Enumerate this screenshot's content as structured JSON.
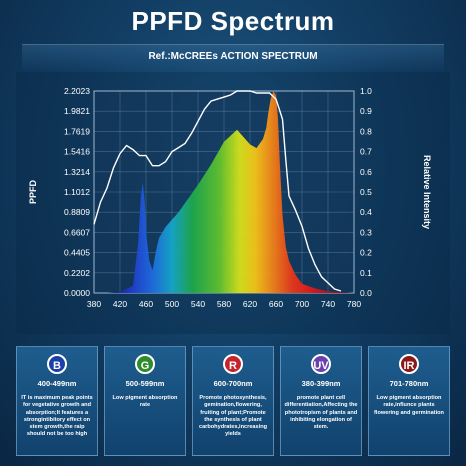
{
  "header": {
    "title": "PPFD Spectrum",
    "ref": "Ref.:McCREEs ACTION SPECTRUM"
  },
  "chart_data": {
    "type": "area",
    "ylabel": "PPFD",
    "y2label": "Relative Intensity",
    "xlim": [
      380,
      780
    ],
    "ylim": [
      0,
      2.2023
    ],
    "y2lim": [
      0,
      1.0
    ],
    "x_ticks": [
      "380",
      "420",
      "460",
      "500",
      "540",
      "580",
      "620",
      "660",
      "700",
      "740",
      "780"
    ],
    "y_ticks": [
      "0.0000",
      "0.2202",
      "0.4405",
      "0.6607",
      "0.8809",
      "1.1012",
      "1.3214",
      "1.5416",
      "1.7619",
      "1.9821",
      "2.2023"
    ],
    "y2_ticks": [
      "0.0",
      "0.1",
      "0.2",
      "0.3",
      "0.4",
      "0.5",
      "0.6",
      "0.7",
      "0.8",
      "0.9",
      "1.0"
    ],
    "grid": true,
    "series": [
      {
        "role": "spectrum",
        "fill": "visible-spectrum",
        "x": [
          400,
          420,
          440,
          448,
          452,
          455,
          458,
          461,
          465,
          470,
          475,
          480,
          490,
          500,
          510,
          520,
          540,
          560,
          580,
          600,
          620,
          630,
          640,
          645,
          648,
          652,
          656,
          660,
          663,
          666,
          670,
          675,
          680,
          690,
          700,
          720,
          740,
          760,
          780
        ],
        "y": [
          0,
          0.01,
          0.08,
          0.55,
          1.05,
          1.2,
          1.0,
          0.6,
          0.35,
          0.25,
          0.45,
          0.6,
          0.72,
          0.8,
          0.88,
          0.98,
          1.18,
          1.4,
          1.65,
          1.78,
          1.62,
          1.58,
          1.68,
          1.8,
          1.96,
          2.12,
          2.2,
          2.15,
          1.9,
          1.4,
          0.85,
          0.5,
          0.35,
          0.2,
          0.1,
          0.05,
          0.02,
          0.01,
          0
        ]
      },
      {
        "role": "action-spectrum",
        "axis": "right",
        "color": "#ffffff",
        "x": [
          380,
          390,
          400,
          410,
          420,
          430,
          440,
          450,
          460,
          470,
          480,
          490,
          500,
          510,
          520,
          530,
          540,
          550,
          560,
          570,
          580,
          590,
          600,
          610,
          620,
          630,
          640,
          650,
          660,
          665,
          670,
          675,
          680,
          690,
          700,
          710,
          720,
          730,
          740,
          750,
          760
        ],
        "y": [
          0.34,
          0.45,
          0.52,
          0.62,
          0.69,
          0.73,
          0.71,
          0.68,
          0.68,
          0.63,
          0.63,
          0.65,
          0.7,
          0.72,
          0.74,
          0.79,
          0.85,
          0.91,
          0.95,
          0.96,
          0.97,
          0.98,
          1.0,
          1.0,
          1.0,
          0.99,
          0.99,
          0.99,
          0.96,
          0.91,
          0.86,
          0.66,
          0.48,
          0.41,
          0.33,
          0.22,
          0.14,
          0.08,
          0.05,
          0.02,
          0.01
        ]
      }
    ]
  },
  "cards": [
    {
      "letter": "B",
      "color": "#1d3fa8",
      "range": "400-499nm",
      "desc": "IT is maximum peak points for vegetative growth and absorption;It features a strongintibitory effect on stem growth,the raip should not be too high"
    },
    {
      "letter": "G",
      "color": "#2e8b2e",
      "range": "500-599nm",
      "desc": "Low pigment absorption rate"
    },
    {
      "letter": "R",
      "color": "#c4242b",
      "range": "600-700nm",
      "desc": "Promote photosynthesis, gemination,flowering, fruiting of plant;Promote the synthesis of plant carbohydrates,increasing yields"
    },
    {
      "letter": "UV",
      "color": "#6a3fb0",
      "range": "380-399nm",
      "desc": "promote plant cell differentiation,Affecting the phototropism of plants and inhibiting elongation of stem."
    },
    {
      "letter": "IR",
      "color": "#8a1a1a",
      "range": "701-780nm",
      "desc": "Low pigment absorption rate,influnce plants flowering and germination"
    }
  ]
}
